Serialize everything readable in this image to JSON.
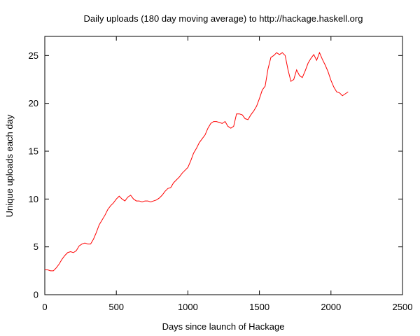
{
  "chart_data": {
    "type": "line",
    "title": "Daily uploads (180 day moving average) to http://hackage.haskell.org",
    "xlabel": "Days since launch of Hackage",
    "ylabel": "Unique uploads each day",
    "xlim": [
      0,
      2500
    ],
    "ylim": [
      0,
      27
    ],
    "x_ticks": [
      0,
      500,
      1000,
      1500,
      2000,
      2500
    ],
    "y_ticks": [
      0,
      5,
      10,
      15,
      20,
      25
    ],
    "grid": false,
    "legend": "none",
    "series": [
      {
        "color": "#ff0000",
        "x": [
          0,
          20,
          40,
          60,
          80,
          100,
          120,
          140,
          160,
          180,
          200,
          220,
          240,
          260,
          280,
          300,
          320,
          340,
          360,
          380,
          400,
          420,
          440,
          460,
          480,
          500,
          520,
          540,
          560,
          580,
          600,
          620,
          640,
          660,
          680,
          700,
          720,
          740,
          760,
          780,
          800,
          820,
          840,
          860,
          880,
          900,
          920,
          940,
          960,
          980,
          1000,
          1020,
          1040,
          1060,
          1080,
          1100,
          1120,
          1140,
          1160,
          1180,
          1200,
          1220,
          1240,
          1260,
          1280,
          1300,
          1320,
          1340,
          1360,
          1380,
          1400,
          1420,
          1440,
          1460,
          1480,
          1500,
          1520,
          1540,
          1560,
          1580,
          1600,
          1620,
          1640,
          1660,
          1680,
          1700,
          1720,
          1740,
          1760,
          1780,
          1800,
          1820,
          1840,
          1860,
          1880,
          1900,
          1920,
          1940,
          1960,
          1980,
          2000,
          2020,
          2040,
          2060,
          2080,
          2100,
          2120
        ],
        "values": [
          2.6,
          2.6,
          2.5,
          2.5,
          2.8,
          3.2,
          3.7,
          4.1,
          4.4,
          4.5,
          4.4,
          4.6,
          5.1,
          5.3,
          5.4,
          5.3,
          5.3,
          5.8,
          6.5,
          7.3,
          7.8,
          8.3,
          8.9,
          9.3,
          9.6,
          10.0,
          10.3,
          10.0,
          9.8,
          10.2,
          10.4,
          10.0,
          9.8,
          9.8,
          9.7,
          9.8,
          9.8,
          9.7,
          9.8,
          9.9,
          10.1,
          10.4,
          10.8,
          11.1,
          11.2,
          11.7,
          12.0,
          12.3,
          12.7,
          13.0,
          13.3,
          14.0,
          14.8,
          15.3,
          15.9,
          16.3,
          16.7,
          17.4,
          17.9,
          18.1,
          18.1,
          18.0,
          17.9,
          18.1,
          17.6,
          17.4,
          17.6,
          18.9,
          18.9,
          18.8,
          18.4,
          18.3,
          18.8,
          19.2,
          19.7,
          20.5,
          21.4,
          21.8,
          23.6,
          24.8,
          25.0,
          25.3,
          25.1,
          25.3,
          25.0,
          23.5,
          22.3,
          22.5,
          23.5,
          22.9,
          22.7,
          23.4,
          24.2,
          24.7,
          25.1,
          24.5,
          25.3,
          24.6,
          24.0,
          23.3,
          22.4,
          21.7,
          21.2,
          21.1,
          20.8,
          21.0,
          21.2
        ]
      }
    ]
  }
}
